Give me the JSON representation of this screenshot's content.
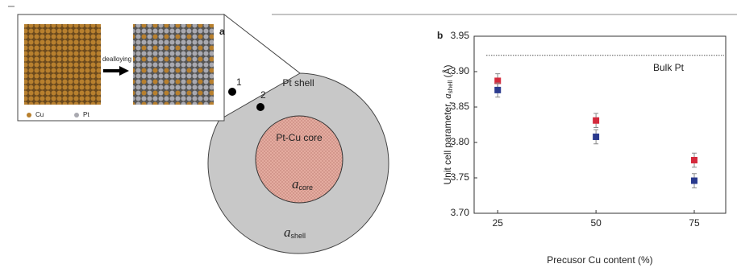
{
  "panel_a": {
    "label": "a",
    "inset": {
      "arrow_label": "dealloying",
      "legend": [
        "Cu",
        "Pt"
      ]
    },
    "shell_label": "Pt shell",
    "core_label": "Pt-Cu core",
    "core_param": [
      "a",
      "core"
    ],
    "shell_param": [
      "a",
      "shell"
    ],
    "points": [
      "1",
      "2"
    ]
  },
  "chart_data": {
    "type": "scatter",
    "panel_label": "b",
    "xlabel": "Precusor Cu content (%)",
    "ylabel": [
      "Unit cell parameter, ",
      "a",
      "shell",
      " (Å)"
    ],
    "x": [
      25,
      50,
      75
    ],
    "series": [
      {
        "color": "#d42a3c",
        "values": [
          3.887,
          3.831,
          3.775
        ],
        "errors": [
          0.01,
          0.01,
          0.01
        ]
      },
      {
        "color": "#2a3a8e",
        "values": [
          3.874,
          3.808,
          3.746
        ],
        "errors": [
          0.01,
          0.01,
          0.01
        ]
      }
    ],
    "reference_line": {
      "label": "Bulk Pt",
      "value": 3.923
    },
    "xlim": [
      19,
      83
    ],
    "xticks": [
      25,
      50,
      75
    ],
    "ylim": [
      3.7,
      3.95
    ],
    "yticks": [
      {
        "value": 3.7,
        "label": "3.70"
      },
      {
        "value": 3.75,
        "label": "3.75"
      },
      {
        "value": 3.8,
        "label": "3.80"
      },
      {
        "value": 3.85,
        "label": "3.85"
      },
      {
        "value": 3.9,
        "label": "3.90"
      },
      {
        "value": 3.95,
        "label": "3.95"
      }
    ]
  }
}
